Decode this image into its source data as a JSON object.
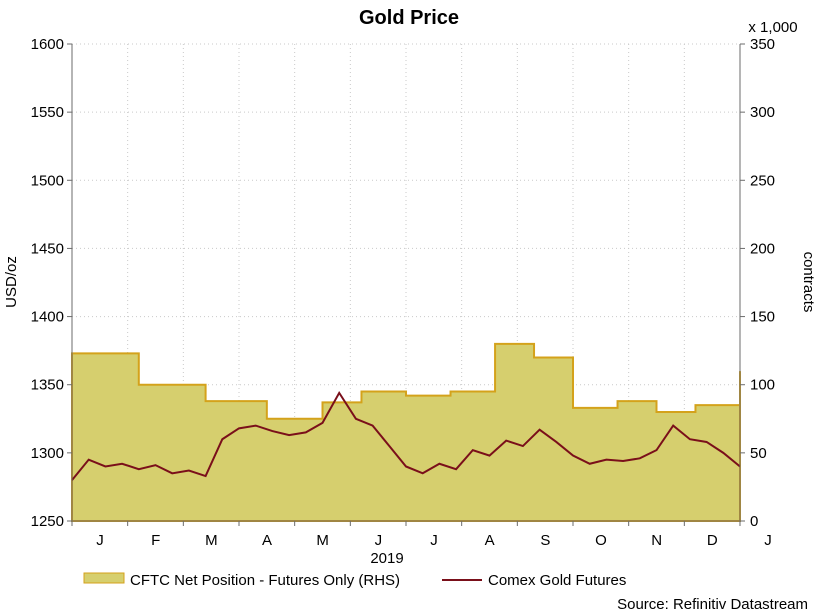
{
  "chart_data": {
    "type": "line",
    "title": "Gold Price",
    "xlabel": "2019",
    "ylabel_left": "USD/oz",
    "ylabel_right": "contracts",
    "right_unit_note": "x 1,000",
    "source": "Source: Refinitiv Datastream",
    "x_ticks": [
      "J",
      "F",
      "M",
      "A",
      "M",
      "J",
      "J",
      "A",
      "S",
      "O",
      "N",
      "D",
      "J"
    ],
    "ylim_left": [
      1250,
      1600
    ],
    "yticks_left": [
      1250,
      1300,
      1350,
      1400,
      1450,
      1500,
      1550,
      1600
    ],
    "ylim_right": [
      0,
      350
    ],
    "yticks_right": [
      0,
      50,
      100,
      150,
      200,
      250,
      300,
      350
    ],
    "legend": [
      "CFTC Net Position - Futures Only (RHS)",
      "Comex Gold Futures"
    ],
    "colors": {
      "area_fill": "#d6cf6e",
      "area_edge": "#d4a21b",
      "line": "#7a0f1a",
      "axis": "#6b6b6b",
      "grid": "#c9c9c9"
    },
    "series": [
      {
        "name": "CFTC Net Position - Futures Only (RHS)",
        "axis": "right",
        "style": "step-area",
        "x": [
          0,
          1.2,
          2.4,
          3.5,
          4.5,
          5.2,
          6.0,
          6.8,
          7.6,
          8.3,
          9.0,
          9.8,
          10.5,
          11.2,
          12.0
        ],
        "values": [
          123,
          100,
          88,
          75,
          87,
          95,
          92,
          95,
          130,
          120,
          83,
          88,
          80,
          85,
          110
        ]
      },
      {
        "name": "Comex Gold Futures",
        "axis": "left",
        "style": "line",
        "x": [
          0,
          0.3,
          0.6,
          0.9,
          1.2,
          1.5,
          1.8,
          2.1,
          2.4,
          2.7,
          3.0,
          3.3,
          3.6,
          3.9,
          4.2,
          4.5,
          4.8,
          5.1,
          5.4,
          5.7,
          6.0,
          6.3,
          6.6,
          6.9,
          7.2,
          7.5,
          7.8,
          8.1,
          8.4,
          8.7,
          9.0,
          9.3,
          9.6,
          9.9,
          10.2,
          10.5,
          10.8,
          11.1,
          11.4,
          11.7,
          12.0
        ],
        "values": [
          1280,
          1295,
          1290,
          1292,
          1288,
          1291,
          1285,
          1287,
          1283,
          1310,
          1318,
          1320,
          1316,
          1313,
          1315,
          1322,
          1344,
          1325,
          1320,
          1305,
          1290,
          1285,
          1292,
          1288,
          1302,
          1298,
          1309,
          1305,
          1317,
          1308,
          1298,
          1292,
          1295,
          1294,
          1296,
          1302,
          1320,
          1310,
          1308,
          1300,
          1290
        ]
      }
    ]
  }
}
